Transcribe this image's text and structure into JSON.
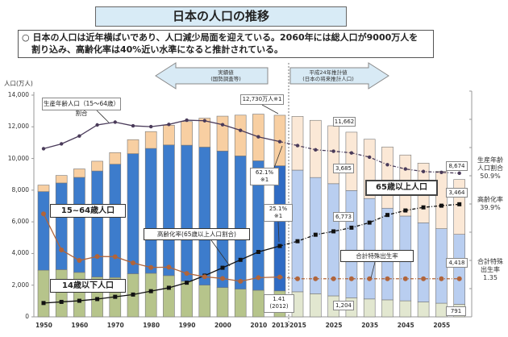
{
  "title": "日本の人口の推移",
  "summary": {
    "bullet": "○",
    "line1": "日本の人口は近年横ばいであり、人口減少局面を迎えている。2060年には総人口が9000万人を",
    "line2": "割り込み、高齢化率は40%近い水準になると推計されている。"
  },
  "arrows": {
    "actual": {
      "line1": "実績値",
      "line2": "(国勢調査等)"
    },
    "projection": {
      "line1": "平成24年推計値",
      "line2": "(日本の将来推計人口)"
    }
  },
  "colors": {
    "under15": "#b6c48b",
    "age15_64": "#3d7ccc",
    "age65plus": "#f8cfa2",
    "under15_proj": "#e2e7d0",
    "age15_64_proj": "#b9cef0",
    "age65plus_proj": "#fbe8d6",
    "bar2013_mid": "#2f6bc4",
    "working_ratio_line": "#4a3b5a",
    "aging_rate_line": "#111111",
    "tfr_line": "#b0643a"
  },
  "chart_data": {
    "type": "bar",
    "stacked": true,
    "ylabel": "人口(万人)",
    "ylim": [
      0,
      14000
    ],
    "yticks": [
      "0",
      "2,000",
      "4,000",
      "6,000",
      "8,000",
      "10,000",
      "12,000",
      "14,000"
    ],
    "y2lim": [
      0,
      80
    ],
    "xtick_labels": [
      "1950",
      "1960",
      "1970",
      "1980",
      "1990",
      "2000",
      "2010",
      "2013",
      "2015",
      "2025",
      "2035",
      "2045",
      "2055"
    ],
    "categories": [
      1950,
      1955,
      1960,
      1965,
      1970,
      1975,
      1980,
      1985,
      1990,
      1995,
      2000,
      2005,
      2010,
      2013,
      2015,
      2020,
      2025,
      2030,
      2035,
      2040,
      2045,
      2050,
      2055,
      2060
    ],
    "projection_from": 2015,
    "series": [
      {
        "name": "14歳以下人口",
        "values": [
          2943,
          2980,
          2807,
          2517,
          2482,
          2722,
          2751,
          2603,
          2249,
          2001,
          1847,
          1752,
          1680,
          1639,
          1583,
          1457,
          1324,
          1204,
          1129,
          1073,
          1012,
          939,
          861,
          791
        ]
      },
      {
        "name": "15~64歳人口",
        "values": [
          4966,
          5473,
          6000,
          6693,
          7157,
          7581,
          7884,
          8251,
          8590,
          8717,
          8622,
          8409,
          8173,
          7901,
          7682,
          7341,
          7085,
          6773,
          6343,
          5787,
          5353,
          5001,
          4706,
          4418
        ]
      },
      {
        "name": "65歳以上人口",
        "values": [
          411,
          475,
          535,
          618,
          733,
          887,
          1065,
          1247,
          1493,
          1828,
          2204,
          2576,
          2948,
          3190,
          3395,
          3612,
          3657,
          3685,
          3741,
          3868,
          3856,
          3768,
          3626,
          3464
        ]
      }
    ],
    "lines": [
      {
        "name": "生産年齢人口（15～64歳）割合",
        "unit": "%",
        "values": [
          59.6,
          61.3,
          64.1,
          68.0,
          69.0,
          67.7,
          67.4,
          68.2,
          69.7,
          69.5,
          68.1,
          66.1,
          63.8,
          62.1,
          60.7,
          59.2,
          58.7,
          58.1,
          56.6,
          53.9,
          52.4,
          51.5,
          51.2,
          50.9
        ]
      },
      {
        "name": "高齢化率（65歳以上人口割合）",
        "unit": "%",
        "values": [
          4.9,
          5.3,
          5.7,
          6.3,
          7.1,
          7.9,
          9.1,
          10.3,
          12.1,
          14.6,
          17.4,
          20.2,
          23.0,
          25.1,
          26.8,
          29.1,
          30.3,
          31.6,
          33.4,
          36.1,
          37.7,
          38.8,
          39.4,
          39.9
        ]
      },
      {
        "name": "合計特殊出生率",
        "unit": "",
        "values": [
          3.65,
          2.37,
          2.0,
          2.14,
          2.13,
          1.91,
          1.75,
          1.76,
          1.54,
          1.42,
          1.36,
          1.26,
          1.39,
          1.41,
          1.35,
          1.35,
          1.35,
          1.35,
          1.35,
          1.35,
          1.35,
          1.35,
          1.35,
          1.35
        ]
      }
    ],
    "annotations": {
      "working_ratio_label": "生産年齢人口（15～64歳）割合",
      "total_2013": "12,730万人※1",
      "working_2013": {
        "value": "62.1%",
        "note": "※1"
      },
      "aging_2013": {
        "value": "25.1%",
        "note": "※1"
      },
      "tfr_2012": {
        "value": "1.41",
        "note": "(2012)"
      },
      "label_15_64": "15~64歳人口",
      "label_under15": "14歳以下人口",
      "label_aging_rate": "高齢化率(65歳以上人口割合)",
      "label_65plus": "65歳以上人口",
      "label_tfr": "合計特殊出生率",
      "total_2030": "11,662",
      "age65_2030": "3,685",
      "age15_64_2030": "6,773",
      "under15_2030": "1,204",
      "total_2060": "8,674",
      "age65_2060": "3,464",
      "age15_64_2060": "4,418",
      "under15_2060": "791"
    },
    "right_labels": {
      "working": {
        "l1": "生産年齢",
        "l2": "人口割合",
        "v": "50.9%"
      },
      "aging": {
        "l1": "高齢化率",
        "v": "39.9%"
      },
      "tfr": {
        "l1": "合計特殊",
        "l2": "出生率",
        "v": "1.35"
      }
    }
  }
}
